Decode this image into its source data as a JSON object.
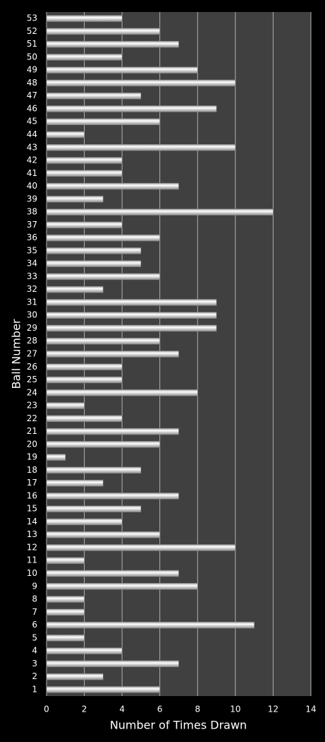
{
  "chart_data": {
    "type": "bar",
    "orientation": "horizontal",
    "x_label": "Number of Times Drawn",
    "y_label": "Ball Number",
    "categories": [
      "1",
      "2",
      "3",
      "4",
      "5",
      "6",
      "7",
      "8",
      "9",
      "10",
      "11",
      "12",
      "13",
      "14",
      "15",
      "16",
      "17",
      "18",
      "19",
      "20",
      "21",
      "22",
      "23",
      "24",
      "25",
      "26",
      "27",
      "28",
      "29",
      "30",
      "31",
      "32",
      "33",
      "34",
      "35",
      "36",
      "37",
      "38",
      "39",
      "40",
      "41",
      "42",
      "43",
      "44",
      "45",
      "46",
      "47",
      "48",
      "49",
      "50",
      "51",
      "52",
      "53"
    ],
    "values": [
      6,
      3,
      7,
      4,
      2,
      11,
      2,
      2,
      8,
      7,
      2,
      10,
      6,
      4,
      5,
      7,
      3,
      5,
      1,
      6,
      7,
      4,
      2,
      8,
      4,
      4,
      7,
      6,
      9,
      9,
      9,
      3,
      6,
      5,
      5,
      6,
      4,
      12,
      3,
      7,
      4,
      4,
      10,
      2,
      6,
      9,
      5,
      10,
      8,
      4,
      7,
      6,
      4
    ],
    "color": "#e6e6e6",
    "xlim": [
      0,
      14
    ],
    "xticks": [
      0,
      2,
      4,
      6,
      8,
      10,
      12,
      14
    ],
    "grid": true
  }
}
